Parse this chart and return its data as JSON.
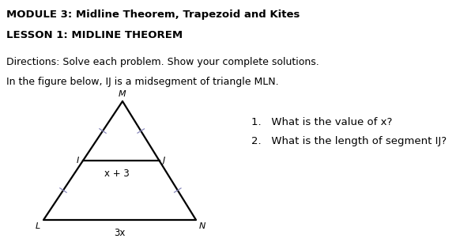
{
  "title_line1": "MODULE 3: Midline Theorem, Trapezoid and Kites",
  "title_line2": "LESSON 1: MIDLINE THEOREM",
  "directions": "Directions: Solve each problem. Show your complete solutions.",
  "figure_text": "In the figure below, IJ is a midsegment of triangle MLN.",
  "question1": "1.   What is the value of x?",
  "question2": "2.   What is the length of segment IJ?",
  "label_M": "M",
  "label_L": "L",
  "label_N": "N",
  "label_I": "I",
  "label_J": "J",
  "label_IJ": "x + 3",
  "label_LN": "3x",
  "bg_color": "#ffffff",
  "text_color": "#000000",
  "line_color": "#000000",
  "tick_color": "#8888bb",
  "title1_fontsize": 9.5,
  "title2_fontsize": 9.5,
  "body_fontsize": 9.0,
  "label_fontsize": 8.0,
  "seg_label_fontsize": 8.5,
  "question_fontsize": 9.5
}
